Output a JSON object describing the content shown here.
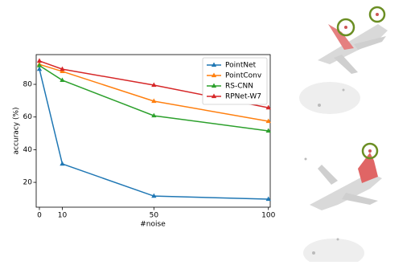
{
  "chart_data": {
    "type": "line",
    "x_label": "#noise",
    "y_label": "accuracy (%)",
    "x": [
      0,
      10,
      50,
      100
    ],
    "series": [
      {
        "name": "PointNet",
        "color": "#1f77b4",
        "values": [
          89.3,
          31.3,
          11.6,
          9.7
        ]
      },
      {
        "name": "PointConv",
        "color": "#ff7f0e",
        "values": [
          92.2,
          87.9,
          69.7,
          57.4
        ]
      },
      {
        "name": "RS-CNN",
        "color": "#2ca02c",
        "values": [
          91.5,
          82.5,
          60.8,
          51.5
        ]
      },
      {
        "name": "RPNet-W7",
        "color": "#d62728",
        "values": [
          94.3,
          89.3,
          79.5,
          65.7
        ]
      }
    ],
    "xlim": [
      -1.4,
      100.8
    ],
    "ylim": [
      4.8,
      98.2
    ],
    "xticks": [
      0,
      10,
      50,
      100
    ],
    "yticks": [
      20,
      40,
      60,
      80
    ],
    "legend": "upper right",
    "marker": "triangle"
  }
}
